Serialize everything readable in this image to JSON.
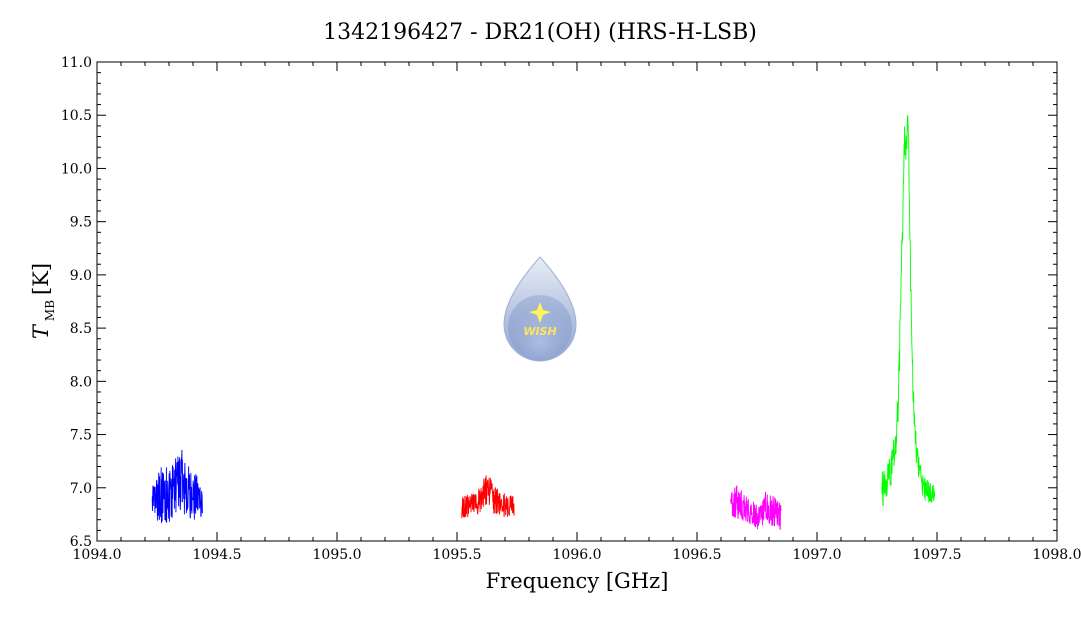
{
  "chart_data": {
    "type": "line",
    "title": "1342196427 - DR21(OH) (HRS-H-LSB)",
    "xlabel": "Frequency [GHz]",
    "ylabel_main": "T",
    "ylabel_sub": "MB",
    "ylabel_unit": "[K]",
    "xlim": [
      1094.0,
      1098.0
    ],
    "ylim": [
      6.5,
      11.0
    ],
    "x_ticks": [
      "1094.0",
      "1094.5",
      "1095.0",
      "1095.5",
      "1096.0",
      "1096.5",
      "1097.0",
      "1097.5",
      "1098.0"
    ],
    "y_ticks": [
      "6.5",
      "7.0",
      "7.5",
      "8.0",
      "8.5",
      "9.0",
      "9.5",
      "10.0",
      "10.5",
      "11.0"
    ],
    "x_tick_values": [
      1094.0,
      1094.5,
      1095.0,
      1095.5,
      1096.0,
      1096.5,
      1097.0,
      1097.5,
      1098.0
    ],
    "y_tick_values": [
      6.5,
      7.0,
      7.5,
      8.0,
      8.5,
      9.0,
      9.5,
      10.0,
      10.5,
      11.0
    ],
    "grid": false,
    "series": [
      {
        "color": "#0000ff",
        "x": [
          1094.23,
          1094.26,
          1094.29,
          1094.32,
          1094.34,
          1094.35,
          1094.36,
          1094.38,
          1094.41,
          1094.44
        ],
        "y": [
          6.88,
          6.94,
          6.98,
          7.02,
          7.1,
          7.12,
          7.04,
          6.98,
          6.94,
          6.9
        ],
        "y_low": [
          6.72,
          6.66,
          6.62,
          6.74,
          6.8,
          6.72,
          6.75,
          6.72,
          6.68,
          6.74
        ],
        "y_high": [
          7.0,
          7.2,
          7.22,
          7.24,
          7.34,
          7.39,
          7.3,
          7.22,
          7.14,
          7.05
        ]
      },
      {
        "color": "#ff0000",
        "x": [
          1095.52,
          1095.55,
          1095.58,
          1095.61,
          1095.63,
          1095.65,
          1095.68,
          1095.71,
          1095.74
        ],
        "y": [
          6.8,
          6.82,
          6.86,
          6.95,
          7.02,
          6.9,
          6.86,
          6.84,
          6.82
        ],
        "y_low": [
          6.7,
          6.72,
          6.74,
          6.8,
          6.86,
          6.76,
          6.72,
          6.72,
          6.74
        ],
        "y_high": [
          6.92,
          6.94,
          6.98,
          7.08,
          7.16,
          7.02,
          6.98,
          6.96,
          6.92
        ]
      },
      {
        "color": "#ff00ff",
        "x": [
          1096.64,
          1096.67,
          1096.7,
          1096.73,
          1096.76,
          1096.79,
          1096.82,
          1096.85
        ],
        "y": [
          6.86,
          6.82,
          6.8,
          6.74,
          6.72,
          6.8,
          6.76,
          6.72
        ],
        "y_low": [
          6.74,
          6.7,
          6.68,
          6.64,
          6.6,
          6.66,
          6.64,
          6.58
        ],
        "y_high": [
          6.98,
          7.04,
          6.94,
          6.88,
          6.86,
          6.98,
          6.92,
          6.86
        ]
      },
      {
        "color": "#00ff00",
        "x": [
          1097.27,
          1097.29,
          1097.31,
          1097.33,
          1097.34,
          1097.35,
          1097.36,
          1097.365,
          1097.37,
          1097.375,
          1097.38,
          1097.385,
          1097.39,
          1097.4,
          1097.41,
          1097.42,
          1097.43,
          1097.45,
          1097.47,
          1097.49
        ],
        "y": [
          7.0,
          7.06,
          7.18,
          7.42,
          7.9,
          8.8,
          9.9,
          10.3,
          10.2,
          10.4,
          10.5,
          9.8,
          8.9,
          7.9,
          7.45,
          7.25,
          7.12,
          7.02,
          6.96,
          6.94
        ],
        "y_low": [
          6.8,
          6.9,
          7.0,
          7.3,
          7.7,
          8.6,
          9.7,
          10.15,
          10.05,
          10.2,
          10.3,
          9.6,
          8.7,
          7.75,
          7.3,
          7.1,
          6.95,
          6.88,
          6.85,
          6.86
        ],
        "y_high": [
          7.15,
          7.22,
          7.35,
          7.6,
          8.1,
          9.0,
          10.1,
          10.45,
          10.35,
          10.55,
          10.64,
          10.0,
          9.1,
          8.05,
          7.6,
          7.4,
          7.25,
          7.12,
          7.06,
          7.02
        ]
      }
    ]
  },
  "logo": {
    "text": "WISH",
    "fill_top": "#e8edf6",
    "fill_bottom": "#8fa4d0",
    "star_color": "#fff45a"
  }
}
